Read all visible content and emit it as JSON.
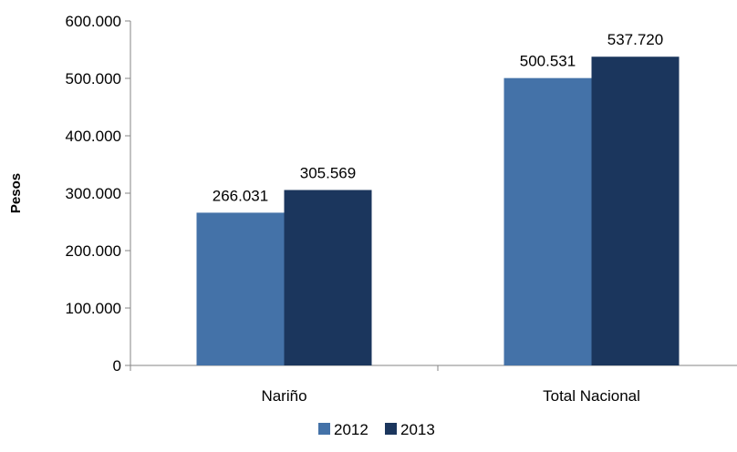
{
  "chart_data": {
    "type": "bar",
    "title": "",
    "xlabel": "",
    "ylabel": "Pesos",
    "ylim": [
      0,
      600000
    ],
    "yticks": [
      0,
      100000,
      200000,
      300000,
      400000,
      500000,
      600000
    ],
    "ytick_labels": [
      "0",
      "100.000",
      "200.000",
      "300.000",
      "400.000",
      "500.000",
      "600.000"
    ],
    "categories": [
      "Nariño",
      "Total Nacional"
    ],
    "series": [
      {
        "name": "2012",
        "color": "#4472A8",
        "values": [
          266031,
          500531
        ],
        "labels": [
          "266.031",
          "500.531"
        ]
      },
      {
        "name": "2013",
        "color": "#1B365D",
        "values": [
          305569,
          537720
        ],
        "labels": [
          "305.569",
          "537.720"
        ]
      }
    ],
    "grid": false,
    "legend_position": "bottom"
  }
}
